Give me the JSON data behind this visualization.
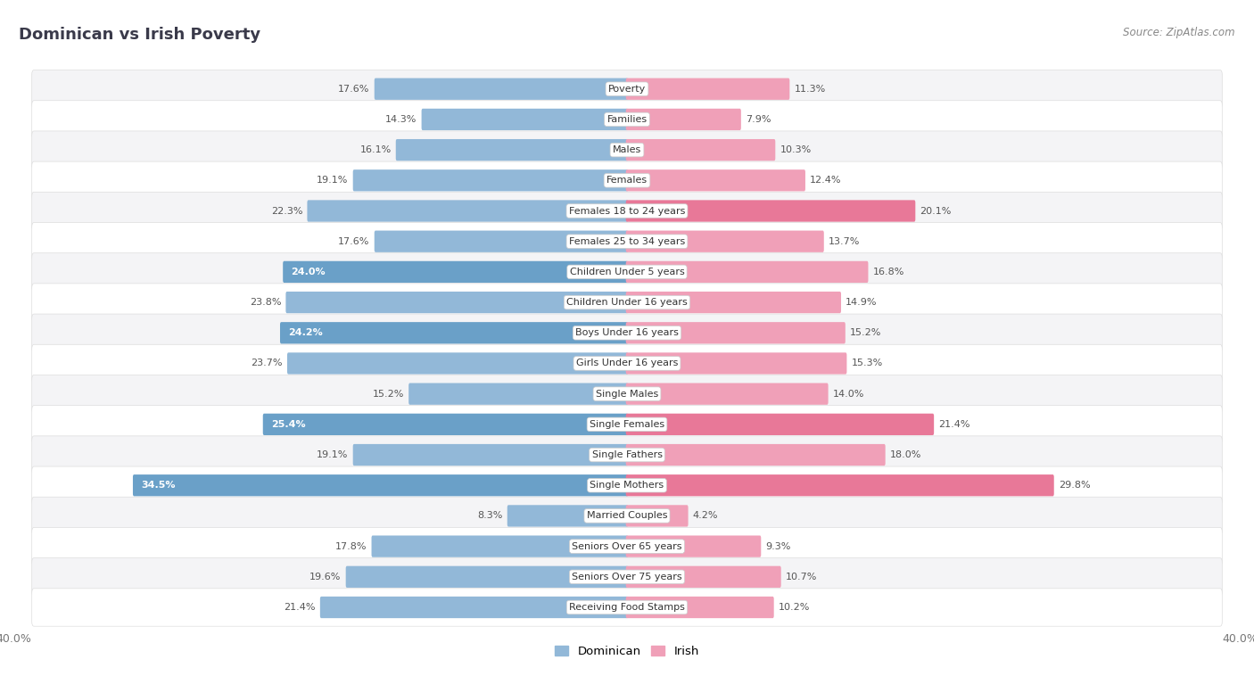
{
  "title": "Dominican vs Irish Poverty",
  "source": "Source: ZipAtlas.com",
  "categories": [
    "Poverty",
    "Families",
    "Males",
    "Females",
    "Females 18 to 24 years",
    "Females 25 to 34 years",
    "Children Under 5 years",
    "Children Under 16 years",
    "Boys Under 16 years",
    "Girls Under 16 years",
    "Single Males",
    "Single Females",
    "Single Fathers",
    "Single Mothers",
    "Married Couples",
    "Seniors Over 65 years",
    "Seniors Over 75 years",
    "Receiving Food Stamps"
  ],
  "dominican": [
    17.6,
    14.3,
    16.1,
    19.1,
    22.3,
    17.6,
    24.0,
    23.8,
    24.2,
    23.7,
    15.2,
    25.4,
    19.1,
    34.5,
    8.3,
    17.8,
    19.6,
    21.4
  ],
  "irish": [
    11.3,
    7.9,
    10.3,
    12.4,
    20.1,
    13.7,
    16.8,
    14.9,
    15.2,
    15.3,
    14.0,
    21.4,
    18.0,
    29.8,
    4.2,
    9.3,
    10.7,
    10.2
  ],
  "dominican_color": "#92b8d8",
  "dominican_highlight_indices": [
    6,
    8,
    11,
    13
  ],
  "dominican_highlight_color": "#6aa0c8",
  "irish_color": "#f0a0b8",
  "irish_highlight_indices": [
    4,
    11,
    13
  ],
  "irish_highlight_color": "#e87898",
  "row_bg_even": "#f4f4f6",
  "row_bg_odd": "#ffffff",
  "axis_max": 40.0,
  "bar_height": 0.55,
  "legend_dominican": "Dominican",
  "legend_irish": "Irish",
  "title_color": "#3a3a4a",
  "source_color": "#888888",
  "label_color": "#555555",
  "value_color_dark": "#555555",
  "value_color_white": "#ffffff"
}
